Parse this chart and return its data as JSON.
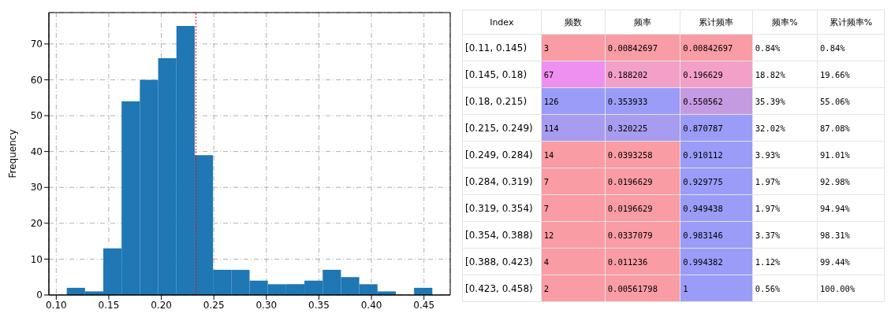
{
  "chart_data": [
    {
      "type": "histogram",
      "ylabel": "Frequency",
      "color": "#1f77b4",
      "bins": [
        0.11,
        0.1274,
        0.1448,
        0.1622,
        0.1796,
        0.197,
        0.2144,
        0.2318,
        0.2492,
        0.2666,
        0.284,
        0.3014,
        0.3188,
        0.3362,
        0.3536,
        0.371,
        0.3884,
        0.4058,
        0.4232,
        0.4406,
        0.458
      ],
      "values": [
        2,
        1,
        13,
        54,
        60,
        66,
        75,
        39,
        7,
        7,
        4,
        3,
        3,
        4,
        7,
        5,
        3,
        1,
        0,
        2
      ],
      "xlim": [
        0.093,
        0.475
      ],
      "xticks": [
        {
          "value": 0.1,
          "label": "0.10"
        },
        0.15,
        {
          "value": 0.2,
          "label": "0.20"
        },
        0.25,
        {
          "value": 0.3,
          "label": "0.30"
        },
        0.35,
        {
          "value": 0.4,
          "label": "0.40"
        },
        0.45
      ],
      "ylim": [
        0,
        78.75
      ],
      "yticks": [
        0,
        10,
        20,
        30,
        40,
        50,
        60,
        70
      ],
      "grid": true,
      "ref_lines": [
        {
          "axis": "x",
          "value": 0.233,
          "color": "#ff0000",
          "line_style": "dotted"
        }
      ]
    },
    {
      "type": "other",
      "categories": [
        "Index",
        "频数",
        "频率",
        "累计频率",
        "频率%",
        "累计频率%"
      ],
      "y_categories": [
        "[0.11, 0.145)",
        "[0.145, 0.18)",
        "[0.18, 0.215)",
        "[0.215, 0.249)",
        "[0.249, 0.284)",
        "[0.284, 0.319)",
        "[0.319, 0.354)",
        "[0.354, 0.388)",
        "[0.388, 0.423)",
        "[0.423, 0.458)"
      ],
      "cell_labels": [
        [
          "3",
          "0.00842697",
          "0.00842697",
          "0.84%",
          "0.84%"
        ],
        [
          "67",
          "0.188202",
          "0.196629",
          "18.82%",
          "19.66%"
        ],
        [
          "126",
          "0.353933",
          "0.550562",
          "35.39%",
          "55.06%"
        ],
        [
          "114",
          "0.320225",
          "0.870787",
          "32.02%",
          "87.08%"
        ],
        [
          "14",
          "0.0393258",
          "0.910112",
          "3.93%",
          "91.01%"
        ],
        [
          "7",
          "0.0196629",
          "0.929775",
          "1.97%",
          "92.98%"
        ],
        [
          "7",
          "0.0196629",
          "0.949438",
          "1.97%",
          "94.94%"
        ],
        [
          "12",
          "0.0337079",
          "0.983146",
          "3.37%",
          "98.31%"
        ],
        [
          "4",
          "0.011236",
          "0.994382",
          "1.12%",
          "99.44%"
        ],
        [
          "2",
          "0.00561798",
          "1",
          "0.56%",
          "100.00%"
        ]
      ],
      "colors": [
        [
          "#f99ca4",
          "#f99ca4",
          "#f99ca4",
          "#ffffff",
          "#ffffff"
        ],
        [
          "#ee90f0",
          "#f3a0c8",
          "#f3a0c8",
          "#ffffff",
          "#ffffff"
        ],
        [
          "#9a9cf8",
          "#9a9cf8",
          "#c49ae0",
          "#ffffff",
          "#ffffff"
        ],
        [
          "#a89cf0",
          "#a89cf0",
          "#9a9cf8",
          "#ffffff",
          "#ffffff"
        ],
        [
          "#f99ca4",
          "#f99ca4",
          "#9a9cf8",
          "#ffffff",
          "#ffffff"
        ],
        [
          "#f99ca4",
          "#f99ca4",
          "#9a9cf8",
          "#ffffff",
          "#ffffff"
        ],
        [
          "#f99ca4",
          "#f99ca4",
          "#9a9cf8",
          "#ffffff",
          "#ffffff"
        ],
        [
          "#f99ca4",
          "#f99ca4",
          "#9a9cf8",
          "#ffffff",
          "#ffffff"
        ],
        [
          "#f99ca4",
          "#f99ca4",
          "#9a9cf8",
          "#ffffff",
          "#ffffff"
        ],
        [
          "#f99ca4",
          "#f99ca4",
          "#9a9cf8",
          "#ffffff",
          "#ffffff"
        ]
      ]
    }
  ]
}
